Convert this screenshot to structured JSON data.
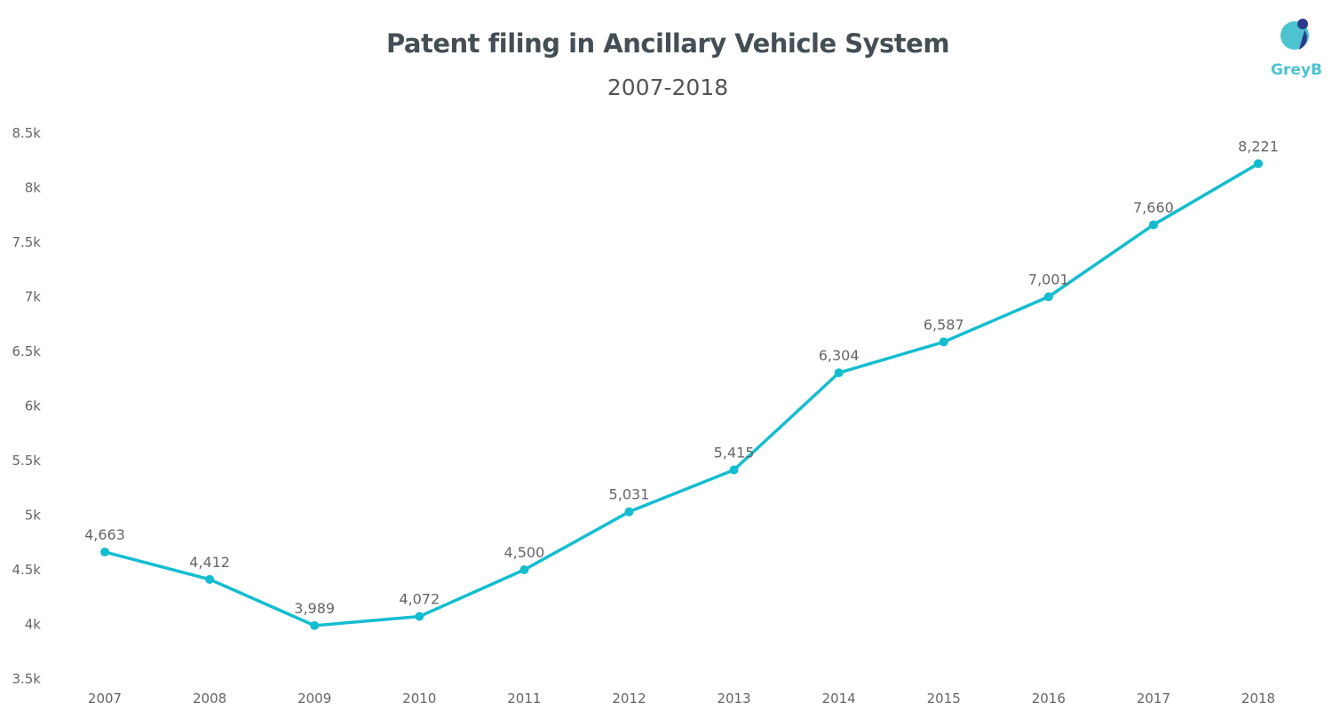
{
  "chart_data": {
    "type": "line",
    "title": "Patent filing in Ancillary Vehicle System",
    "subtitle": "2007-2018",
    "xlabel": "",
    "ylabel": "",
    "categories": [
      "2007",
      "2008",
      "2009",
      "2010",
      "2011",
      "2012",
      "2013",
      "2014",
      "2015",
      "2016",
      "2017",
      "2018"
    ],
    "values": [
      4663,
      4412,
      3989,
      4072,
      4500,
      5031,
      5415,
      6304,
      6587,
      7001,
      7660,
      8221
    ],
    "data_labels": [
      "4,663",
      "4,412",
      "3,989",
      "4,072",
      "4,500",
      "5,031",
      "5,415",
      "6,304",
      "6,587",
      "7,001",
      "7,660",
      "8,221"
    ],
    "ylim": [
      3500,
      8500
    ],
    "y_ticks": [
      3500,
      4000,
      4500,
      5000,
      5500,
      6000,
      6500,
      7000,
      7500,
      8000,
      8500
    ],
    "y_tick_labels": [
      "3.5k",
      "4k",
      "4.5k",
      "5k",
      "5.5k",
      "6k",
      "6.5k",
      "7k",
      "7.5k",
      "8k",
      "8.5k"
    ],
    "grid": false,
    "legend": "none",
    "line_color": "#13bdd0"
  },
  "logo": {
    "text": "GreyB",
    "color": "#4cc3cf",
    "accent": "#2b3a8f"
  }
}
